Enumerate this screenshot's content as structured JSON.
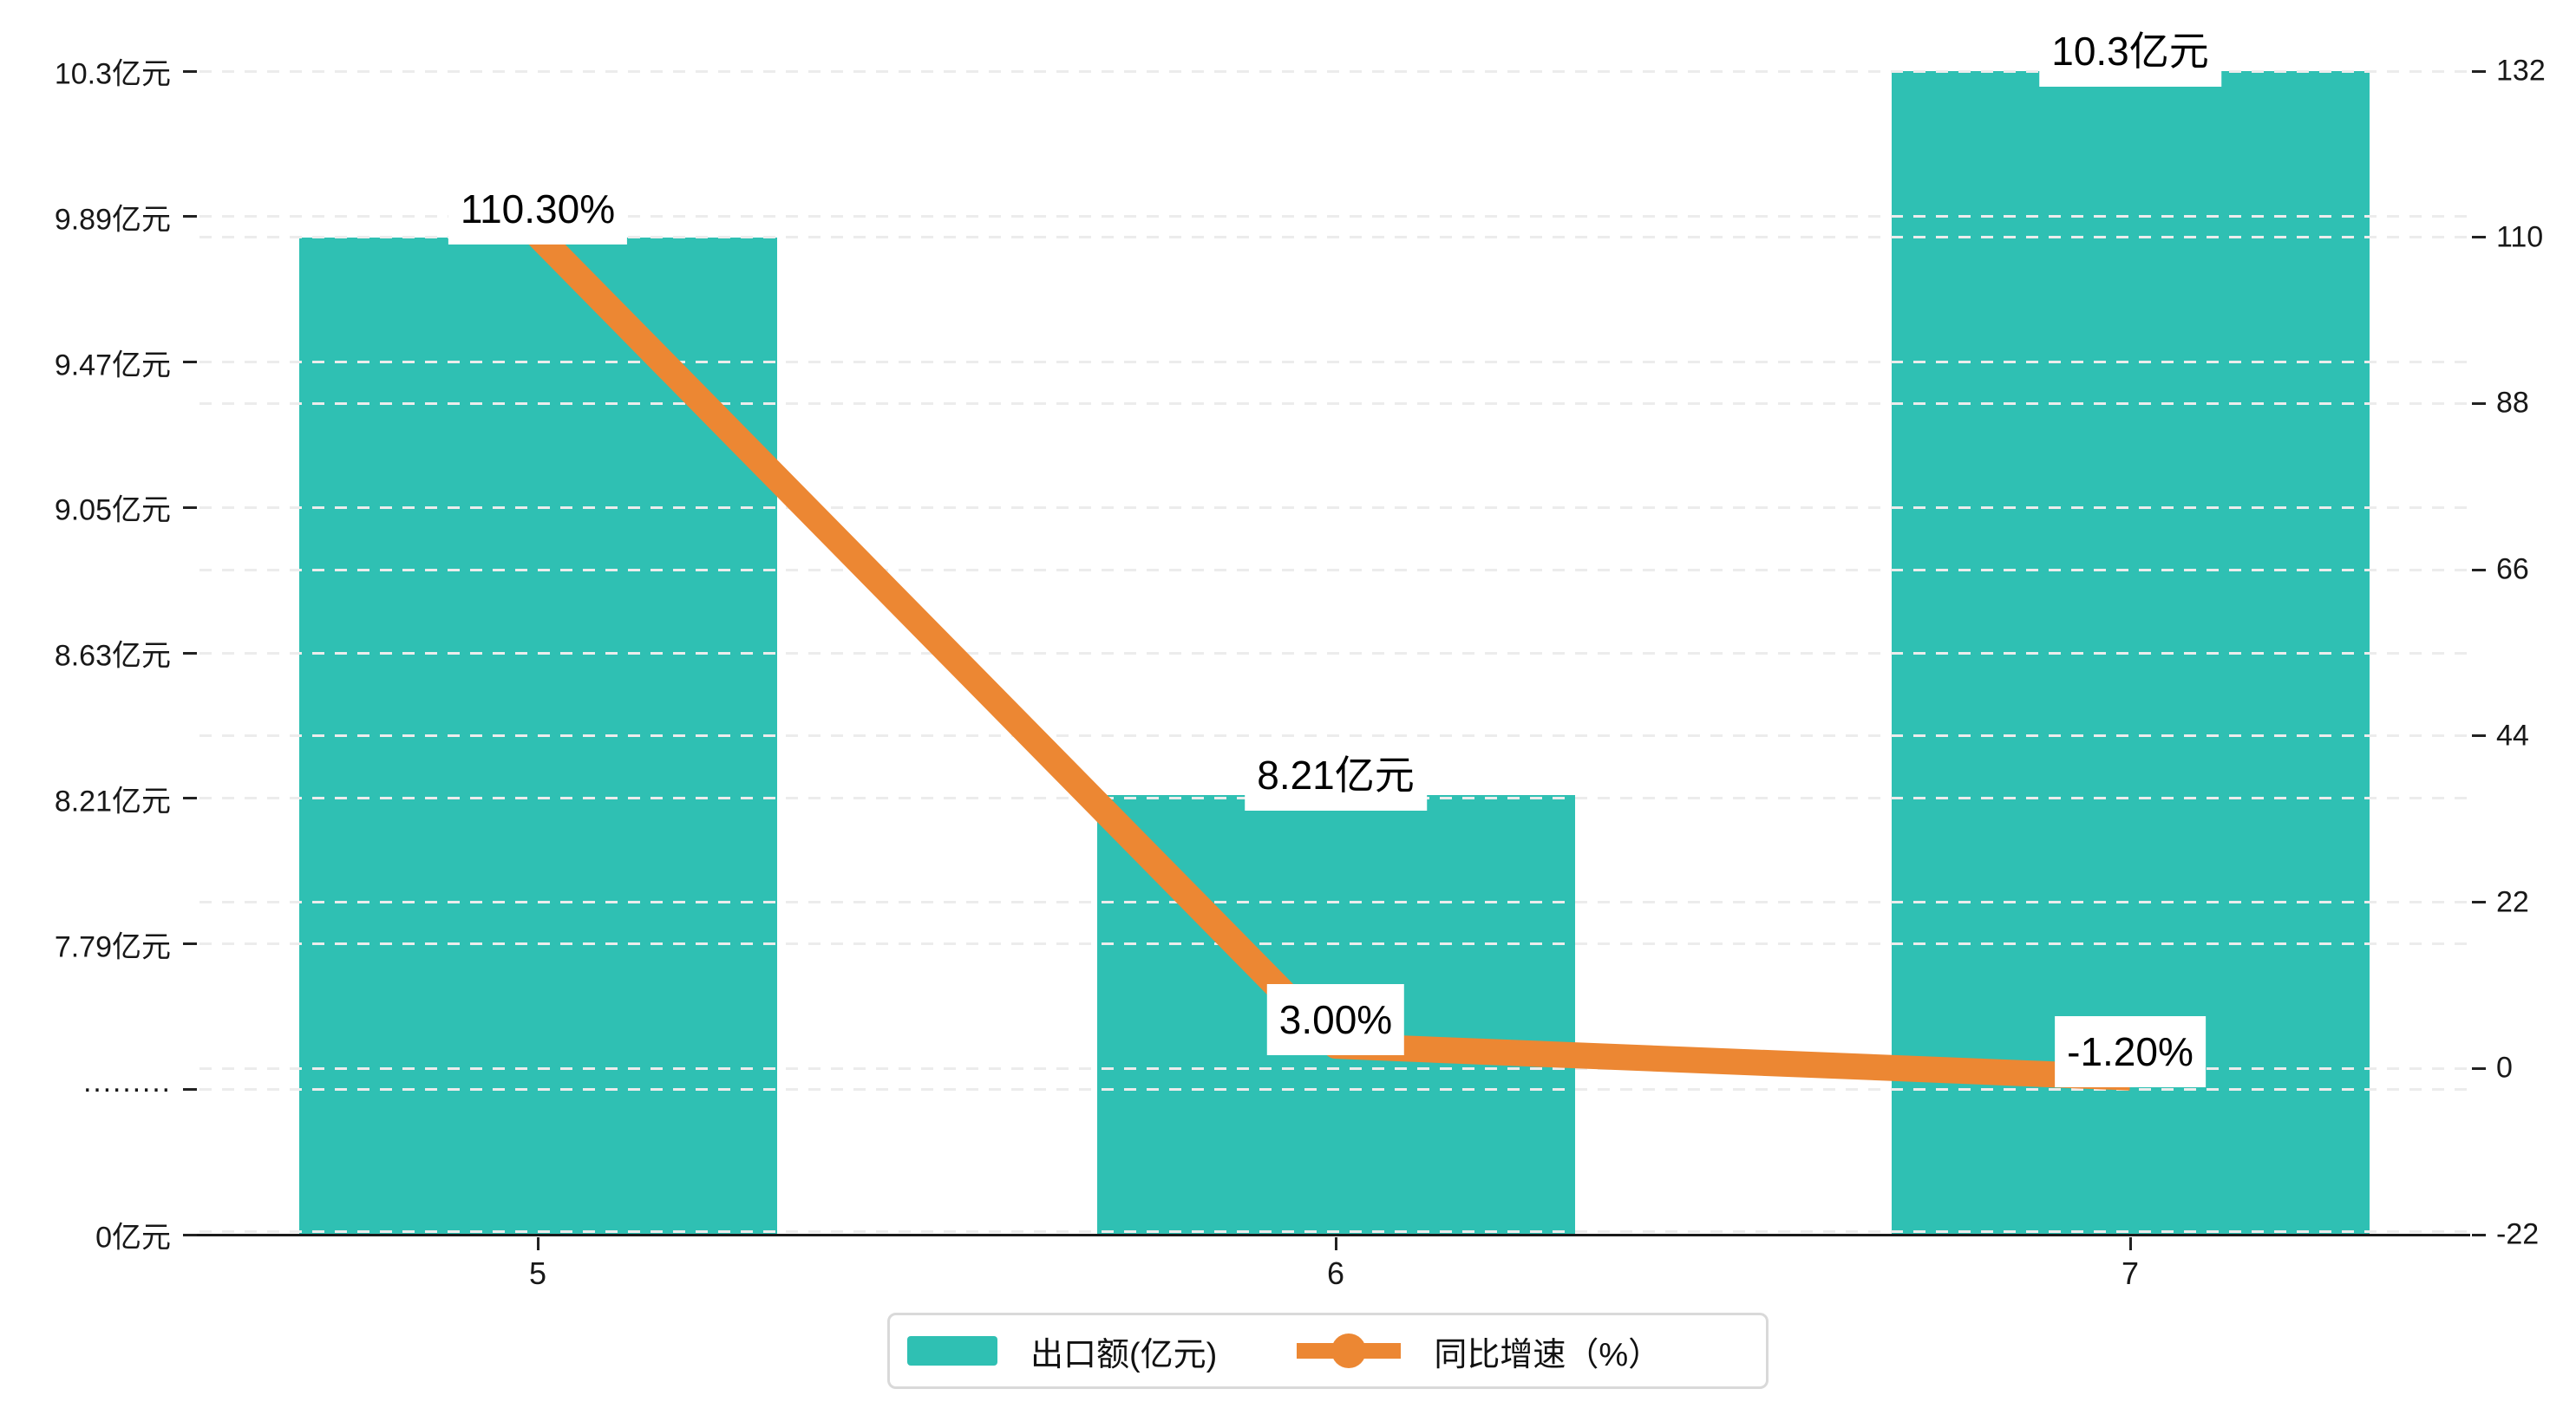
{
  "chart_data": {
    "type": "combo",
    "categories": [
      "5",
      "6",
      "7"
    ],
    "series": [
      {
        "name": "出口额(亿元)",
        "type": "bar",
        "axis": "left",
        "unit": "亿元",
        "values": [
          9.82,
          8.21,
          10.3
        ],
        "bar_labels": [
          "",
          "8.21亿元",
          "10.3亿元"
        ],
        "color": "#2FC0B3"
      },
      {
        "name": "同比增速（%）",
        "type": "line",
        "axis": "right",
        "unit": "%",
        "values": [
          110.3,
          3.0,
          -1.2
        ],
        "point_labels": [
          "110.30%",
          "3.00%",
          "-1.20%"
        ],
        "color": "#EC8733"
      }
    ],
    "left_axis": {
      "tick_labels_top_to_bottom": [
        "10.3亿元",
        "9.89亿元",
        "9.47亿元",
        "9.05亿元",
        "8.63亿元",
        "8.21亿元",
        "7.79亿元",
        "·········",
        "0亿元"
      ],
      "broken_axis": true,
      "top_value": 10.3,
      "tick_step_value": 0.42
    },
    "right_axis": {
      "tick_labels_top_to_bottom": [
        "132",
        "110",
        "88",
        "66",
        "44",
        "22",
        "0",
        "-22"
      ],
      "min": -22,
      "max": 132,
      "step": 22
    },
    "legend": [
      {
        "label": "出口额(亿元)",
        "marker": "bar"
      },
      {
        "label": "同比增速（%）",
        "marker": "line-dot"
      }
    ],
    "gridlines": "dashed-horizontal-both-axes"
  },
  "colors": {
    "bar": "#2FC0B3",
    "line": "#EC8733",
    "gridline": "#ececec",
    "axis": "#1a1a1a",
    "tick": "#222222",
    "label_text": "#000000",
    "axis_text": "#181818",
    "legend_border": "#d9d9d9",
    "background": "#ffffff"
  }
}
